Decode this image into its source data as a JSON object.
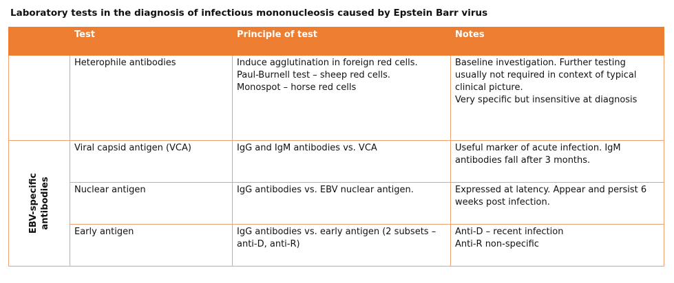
{
  "title": "Laboratory tests in the diagnosis of infectious mononucleosis caused by Epstein Barr virus",
  "table": {
    "headers": {
      "group": "",
      "test": "Test",
      "principle": "Principle of test",
      "notes": "Notes"
    },
    "rows": [
      {
        "test": "Heterophile antibodies",
        "principle": [
          "Induce agglutination in foreign red cells.",
          "Paul-Burnell test – sheep red cells.",
          "Monospot – horse red cells"
        ],
        "notes": [
          "Baseline investigation. Further testing usually not required in context of typical clinical picture.",
          "Very specific but insensitive at diagnosis"
        ]
      },
      {
        "test": "Viral capsid antigen (VCA)",
        "principle": [
          "IgG and IgM antibodies vs. VCA"
        ],
        "notes": [
          "Useful marker of acute infection. IgM antibodies fall after 3 months."
        ]
      },
      {
        "test": "Nuclear antigen",
        "principle": [
          "IgG antibodies vs. EBV nuclear antigen."
        ],
        "notes": [
          "Expressed at latency. Appear and persist 6 weeks post infection."
        ]
      },
      {
        "test": "Early antigen",
        "principle": [
          "IgG antibodies vs. early antigen (2 subsets – anti-D, anti-R)"
        ],
        "notes": [
          "Anti-D – recent infection",
          "Anti-R non-specific"
        ]
      }
    ],
    "group_label": {
      "line1": "EBV-specific",
      "line2": "antibodies"
    }
  },
  "colors": {
    "header_bg": "#ed7d31",
    "header_text": "#ffffff",
    "border": "#f0a070"
  }
}
